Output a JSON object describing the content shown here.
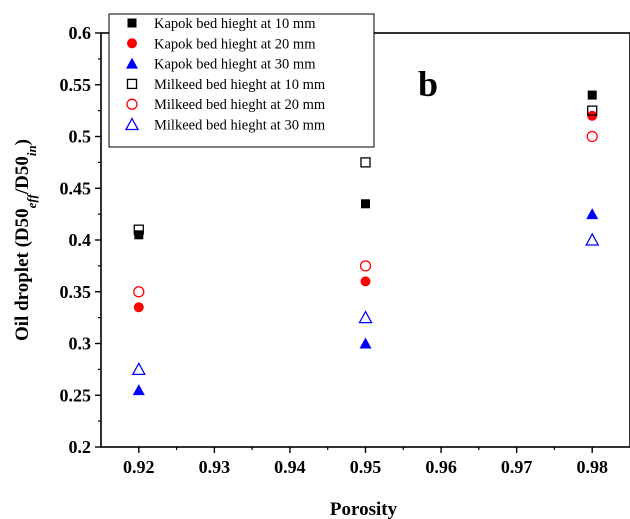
{
  "chart_data": {
    "type": "scatter",
    "panel_label": "b",
    "xlabel": "Porosity",
    "ylabel_main": "Oil droplet (D50",
    "ylabel_sub1": "eff",
    "ylabel_mid": "/D50",
    "ylabel_sub2": "in",
    "ylabel_end": ")",
    "xlim": [
      0.915,
      0.985
    ],
    "ylim": [
      0.2,
      0.6
    ],
    "x_ticks": [
      0.92,
      0.93,
      0.94,
      0.95,
      0.96,
      0.97,
      0.98
    ],
    "x_tick_labels": [
      "0.92",
      "0.93",
      "0.94",
      "0.95",
      "0.96",
      "0.97",
      "0.98"
    ],
    "y_ticks": [
      0.2,
      0.25,
      0.3,
      0.35,
      0.4,
      0.45,
      0.5,
      0.55,
      0.6
    ],
    "y_tick_labels": [
      "0.2",
      "0.25",
      "0.3",
      "0.35",
      "0.4",
      "0.45",
      "0.5",
      "0.55",
      "0.6"
    ],
    "grid": false,
    "legend_position": "top-left",
    "series": [
      {
        "name": "Kapok bed hieght at 10 mm",
        "marker": "square",
        "filled": true,
        "color": "#000000",
        "x": [
          0.92,
          0.95,
          0.98
        ],
        "y": [
          0.405,
          0.435,
          0.54
        ]
      },
      {
        "name": "Kapok bed hieght at 20 mm",
        "marker": "circle",
        "filled": true,
        "color": "#ff0000",
        "x": [
          0.92,
          0.95,
          0.98
        ],
        "y": [
          0.335,
          0.36,
          0.52
        ]
      },
      {
        "name": "Kapok bed hieght at 30 mm",
        "marker": "triangle",
        "filled": true,
        "color": "#0000ff",
        "x": [
          0.92,
          0.95,
          0.98
        ],
        "y": [
          0.255,
          0.3,
          0.425
        ]
      },
      {
        "name": "Milkeed bed hieght at 10 mm",
        "marker": "square",
        "filled": false,
        "color": "#000000",
        "x": [
          0.92,
          0.95,
          0.98
        ],
        "y": [
          0.41,
          0.475,
          0.525
        ]
      },
      {
        "name": "Milkeed bed hieght at 20 mm",
        "marker": "circle",
        "filled": false,
        "color": "#ff0000",
        "x": [
          0.92,
          0.95,
          0.98
        ],
        "y": [
          0.35,
          0.375,
          0.5
        ]
      },
      {
        "name": "Milkeed bed hieght at 30 mm",
        "marker": "triangle",
        "filled": false,
        "color": "#0000ff",
        "x": [
          0.92,
          0.95,
          0.98
        ],
        "y": [
          0.275,
          0.325,
          0.4
        ]
      }
    ]
  }
}
